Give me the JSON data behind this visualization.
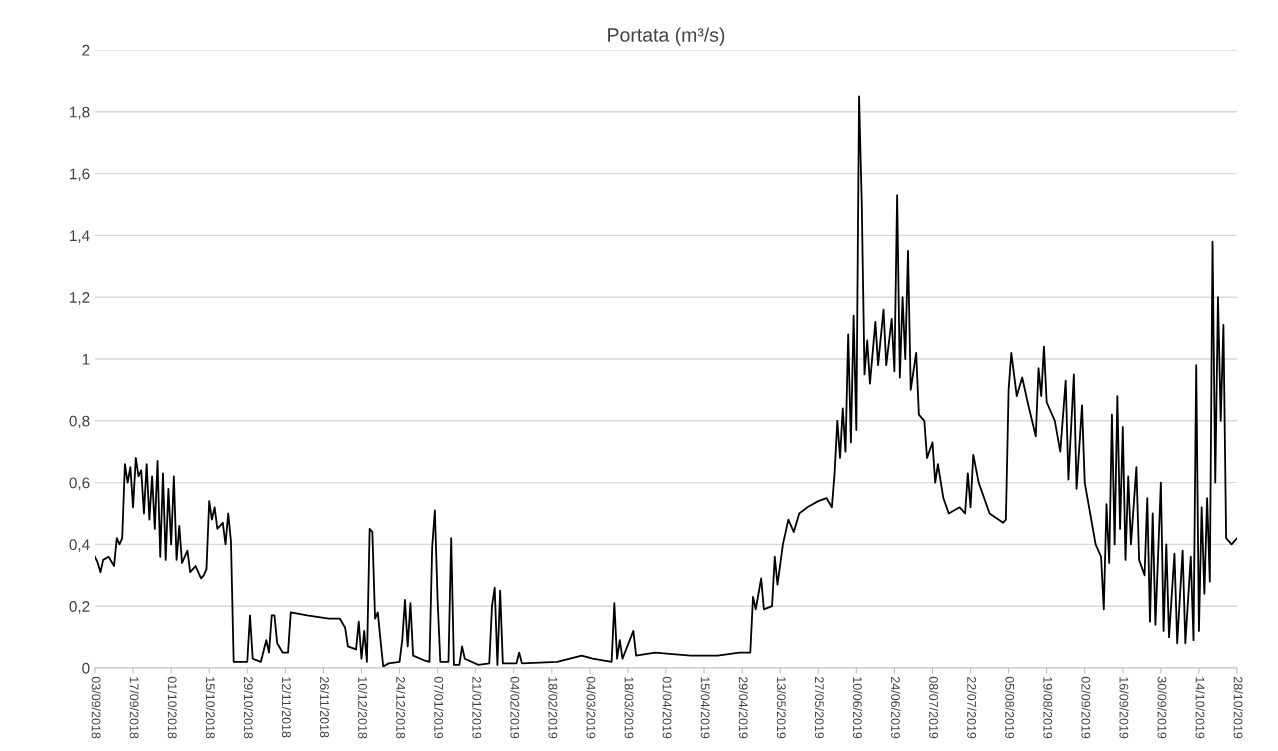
{
  "chart_data": {
    "type": "line",
    "title": "Portata (m³/s)",
    "x": [
      "2018-09-03",
      "2018-09-04",
      "2018-09-05",
      "2018-09-06",
      "2018-09-08",
      "2018-09-10",
      "2018-09-11",
      "2018-09-12",
      "2018-09-13",
      "2018-09-14",
      "2018-09-15",
      "2018-09-16",
      "2018-09-17",
      "2018-09-18",
      "2018-09-19",
      "2018-09-20",
      "2018-09-21",
      "2018-09-22",
      "2018-09-23",
      "2018-09-24",
      "2018-09-25",
      "2018-09-26",
      "2018-09-27",
      "2018-09-28",
      "2018-09-29",
      "2018-09-30",
      "2018-10-01",
      "2018-10-02",
      "2018-10-03",
      "2018-10-04",
      "2018-10-05",
      "2018-10-07",
      "2018-10-08",
      "2018-10-10",
      "2018-10-12",
      "2018-10-13",
      "2018-10-14",
      "2018-10-15",
      "2018-10-16",
      "2018-10-17",
      "2018-10-18",
      "2018-10-20",
      "2018-10-21",
      "2018-10-22",
      "2018-10-23",
      "2018-10-24",
      "2018-10-29",
      "2018-10-30",
      "2018-10-31",
      "2018-11-03",
      "2018-11-05",
      "2018-11-06",
      "2018-11-07",
      "2018-11-08",
      "2018-11-09",
      "2018-11-11",
      "2018-11-13",
      "2018-11-14",
      "2018-11-20",
      "2018-11-28",
      "2018-12-02",
      "2018-12-04",
      "2018-12-05",
      "2018-12-08",
      "2018-12-09",
      "2018-12-10",
      "2018-12-11",
      "2018-12-12",
      "2018-12-13",
      "2018-12-14",
      "2018-12-15",
      "2018-12-16",
      "2018-12-17",
      "2018-12-18",
      "2018-12-20",
      "2018-12-24",
      "2018-12-25",
      "2018-12-26",
      "2018-12-27",
      "2018-12-28",
      "2018-12-29",
      "2019-01-02",
      "2019-01-04",
      "2019-01-05",
      "2019-01-06",
      "2019-01-07",
      "2019-01-08",
      "2019-01-11",
      "2019-01-12",
      "2019-01-13",
      "2019-01-15",
      "2019-01-16",
      "2019-01-17",
      "2019-01-22",
      "2019-01-26",
      "2019-01-27",
      "2019-01-28",
      "2019-01-29",
      "2019-01-30",
      "2019-01-31",
      "2019-02-05",
      "2019-02-06",
      "2019-02-07",
      "2019-02-20",
      "2019-03-01",
      "2019-03-05",
      "2019-03-12",
      "2019-03-13",
      "2019-03-14",
      "2019-03-15",
      "2019-03-16",
      "2019-03-20",
      "2019-03-21",
      "2019-03-28",
      "2019-04-10",
      "2019-04-20",
      "2019-04-28",
      "2019-05-02",
      "2019-05-03",
      "2019-05-04",
      "2019-05-06",
      "2019-05-07",
      "2019-05-10",
      "2019-05-11",
      "2019-05-12",
      "2019-05-14",
      "2019-05-16",
      "2019-05-18",
      "2019-05-20",
      "2019-05-23",
      "2019-05-27",
      "2019-05-30",
      "2019-06-01",
      "2019-06-02",
      "2019-06-03",
      "2019-06-04",
      "2019-06-05",
      "2019-06-06",
      "2019-06-07",
      "2019-06-08",
      "2019-06-09",
      "2019-06-10",
      "2019-06-11",
      "2019-06-12",
      "2019-06-13",
      "2019-06-14",
      "2019-06-15",
      "2019-06-17",
      "2019-06-18",
      "2019-06-20",
      "2019-06-21",
      "2019-06-23",
      "2019-06-24",
      "2019-06-25",
      "2019-06-26",
      "2019-06-27",
      "2019-06-28",
      "2019-06-29",
      "2019-06-30",
      "2019-07-02",
      "2019-07-03",
      "2019-07-05",
      "2019-07-06",
      "2019-07-08",
      "2019-07-09",
      "2019-07-10",
      "2019-07-12",
      "2019-07-14",
      "2019-07-18",
      "2019-07-20",
      "2019-07-21",
      "2019-07-22",
      "2019-07-23",
      "2019-07-25",
      "2019-07-27",
      "2019-07-29",
      "2019-08-03",
      "2019-08-04",
      "2019-08-05",
      "2019-08-06",
      "2019-08-08",
      "2019-08-10",
      "2019-08-12",
      "2019-08-15",
      "2019-08-16",
      "2019-08-17",
      "2019-08-18",
      "2019-08-19",
      "2019-08-22",
      "2019-08-24",
      "2019-08-26",
      "2019-08-27",
      "2019-08-29",
      "2019-08-30",
      "2019-09-01",
      "2019-09-02",
      "2019-09-04",
      "2019-09-06",
      "2019-09-08",
      "2019-09-09",
      "2019-09-10",
      "2019-09-11",
      "2019-09-12",
      "2019-09-13",
      "2019-09-14",
      "2019-09-15",
      "2019-09-16",
      "2019-09-17",
      "2019-09-18",
      "2019-09-19",
      "2019-09-21",
      "2019-09-22",
      "2019-09-24",
      "2019-09-25",
      "2019-09-26",
      "2019-09-27",
      "2019-09-28",
      "2019-09-30",
      "2019-10-01",
      "2019-10-02",
      "2019-10-03",
      "2019-10-05",
      "2019-10-06",
      "2019-10-08",
      "2019-10-09",
      "2019-10-11",
      "2019-10-12",
      "2019-10-13",
      "2019-10-14",
      "2019-10-15",
      "2019-10-16",
      "2019-10-17",
      "2019-10-18",
      "2019-10-19",
      "2019-10-20",
      "2019-10-21",
      "2019-10-22",
      "2019-10-23",
      "2019-10-24",
      "2019-10-26",
      "2019-10-28"
    ],
    "series": [
      {
        "color": "#000000",
        "values": [
          0.36,
          0.34,
          0.31,
          0.35,
          0.36,
          0.33,
          0.42,
          0.4,
          0.42,
          0.66,
          0.6,
          0.65,
          0.52,
          0.68,
          0.62,
          0.64,
          0.5,
          0.66,
          0.48,
          0.62,
          0.45,
          0.67,
          0.36,
          0.63,
          0.35,
          0.58,
          0.4,
          0.62,
          0.35,
          0.46,
          0.34,
          0.38,
          0.31,
          0.33,
          0.29,
          0.3,
          0.32,
          0.54,
          0.48,
          0.52,
          0.45,
          0.47,
          0.4,
          0.5,
          0.41,
          0.02,
          0.02,
          0.17,
          0.03,
          0.02,
          0.09,
          0.05,
          0.17,
          0.17,
          0.08,
          0.05,
          0.05,
          0.18,
          0.17,
          0.16,
          0.16,
          0.13,
          0.07,
          0.06,
          0.15,
          0.03,
          0.12,
          0.02,
          0.45,
          0.44,
          0.16,
          0.18,
          0.09,
          0.005,
          0.015,
          0.02,
          0.09,
          0.22,
          0.07,
          0.21,
          0.04,
          0.025,
          0.02,
          0.39,
          0.51,
          0.22,
          0.02,
          0.02,
          0.42,
          0.01,
          0.01,
          0.07,
          0.03,
          0.01,
          0.015,
          0.2,
          0.26,
          0.01,
          0.25,
          0.015,
          0.015,
          0.05,
          0.015,
          0.02,
          0.04,
          0.03,
          0.02,
          0.21,
          0.03,
          0.09,
          0.03,
          0.12,
          0.04,
          0.05,
          0.04,
          0.04,
          0.05,
          0.05,
          0.23,
          0.19,
          0.29,
          0.19,
          0.2,
          0.36,
          0.27,
          0.4,
          0.48,
          0.44,
          0.5,
          0.52,
          0.54,
          0.55,
          0.52,
          0.63,
          0.8,
          0.68,
          0.84,
          0.7,
          1.08,
          0.73,
          1.14,
          0.77,
          1.85,
          1.5,
          0.95,
          1.06,
          0.92,
          1.12,
          0.98,
          1.16,
          0.98,
          1.13,
          0.96,
          1.53,
          0.94,
          1.2,
          1.0,
          1.35,
          0.9,
          1.02,
          0.82,
          0.8,
          0.68,
          0.73,
          0.6,
          0.66,
          0.55,
          0.5,
          0.52,
          0.5,
          0.63,
          0.52,
          0.69,
          0.6,
          0.55,
          0.5,
          0.47,
          0.48,
          0.9,
          1.02,
          0.88,
          0.94,
          0.86,
          0.75,
          0.97,
          0.88,
          1.04,
          0.86,
          0.8,
          0.7,
          0.93,
          0.61,
          0.95,
          0.58,
          0.85,
          0.6,
          0.5,
          0.4,
          0.36,
          0.19,
          0.53,
          0.34,
          0.82,
          0.4,
          0.88,
          0.45,
          0.78,
          0.35,
          0.62,
          0.4,
          0.65,
          0.35,
          0.3,
          0.55,
          0.15,
          0.5,
          0.14,
          0.6,
          0.12,
          0.4,
          0.1,
          0.37,
          0.08,
          0.38,
          0.08,
          0.36,
          0.09,
          0.98,
          0.12,
          0.52,
          0.24,
          0.55,
          0.28,
          1.38,
          0.6,
          1.2,
          0.8,
          1.11,
          0.42,
          0.4,
          0.42
        ]
      }
    ],
    "xlim": [
      "2018-09-03",
      "2019-10-28"
    ],
    "xticks": [
      {
        "value": "2018-09-03",
        "label": "03/09/2018"
      },
      {
        "value": "2018-09-17",
        "label": "17/09/2018"
      },
      {
        "value": "2018-10-01",
        "label": "01/10/2018"
      },
      {
        "value": "2018-10-15",
        "label": "15/10/2018"
      },
      {
        "value": "2018-10-29",
        "label": "29/10/2018"
      },
      {
        "value": "2018-11-12",
        "label": "12/11/2018"
      },
      {
        "value": "2018-11-26",
        "label": "26/11/2018"
      },
      {
        "value": "2018-12-10",
        "label": "10/12/2018"
      },
      {
        "value": "2018-12-24",
        "label": "24/12/2018"
      },
      {
        "value": "2019-01-07",
        "label": "07/01/2019"
      },
      {
        "value": "2019-01-21",
        "label": "21/01/2019"
      },
      {
        "value": "2019-02-04",
        "label": "04/02/2019"
      },
      {
        "value": "2019-02-18",
        "label": "18/02/2019"
      },
      {
        "value": "2019-03-04",
        "label": "04/03/2019"
      },
      {
        "value": "2019-03-18",
        "label": "18/03/2019"
      },
      {
        "value": "2019-04-01",
        "label": "01/04/2019"
      },
      {
        "value": "2019-04-15",
        "label": "15/04/2019"
      },
      {
        "value": "2019-04-29",
        "label": "29/04/2019"
      },
      {
        "value": "2019-05-13",
        "label": "13/05/2019"
      },
      {
        "value": "2019-05-27",
        "label": "27/05/2019"
      },
      {
        "value": "2019-06-10",
        "label": "10/06/2019"
      },
      {
        "value": "2019-06-24",
        "label": "24/06/2019"
      },
      {
        "value": "2019-07-08",
        "label": "08/07/2019"
      },
      {
        "value": "2019-07-22",
        "label": "22/07/2019"
      },
      {
        "value": "2019-08-05",
        "label": "05/08/2019"
      },
      {
        "value": "2019-08-19",
        "label": "19/08/2019"
      },
      {
        "value": "2019-09-02",
        "label": "02/09/2019"
      },
      {
        "value": "2019-09-16",
        "label": "16/09/2019"
      },
      {
        "value": "2019-09-30",
        "label": "30/09/2019"
      },
      {
        "value": "2019-10-14",
        "label": "14/10/2019"
      },
      {
        "value": "2019-10-28",
        "label": "28/10/2019"
      }
    ],
    "ylim": [
      0,
      2
    ],
    "yticks": [
      0,
      {
        "value": 0.2,
        "label": "0,2"
      },
      {
        "value": 0.4,
        "label": "0,4"
      },
      {
        "value": 0.6,
        "label": "0,6"
      },
      {
        "value": 0.8,
        "label": "0,8"
      },
      1,
      {
        "value": 1.2,
        "label": "1,2"
      },
      {
        "value": 1.4,
        "label": "1,4"
      },
      {
        "value": 1.6,
        "label": "1,6"
      },
      {
        "value": 1.8,
        "label": "1,8"
      },
      2
    ],
    "grid": "y",
    "marker": "none",
    "line_style": "solid"
  }
}
